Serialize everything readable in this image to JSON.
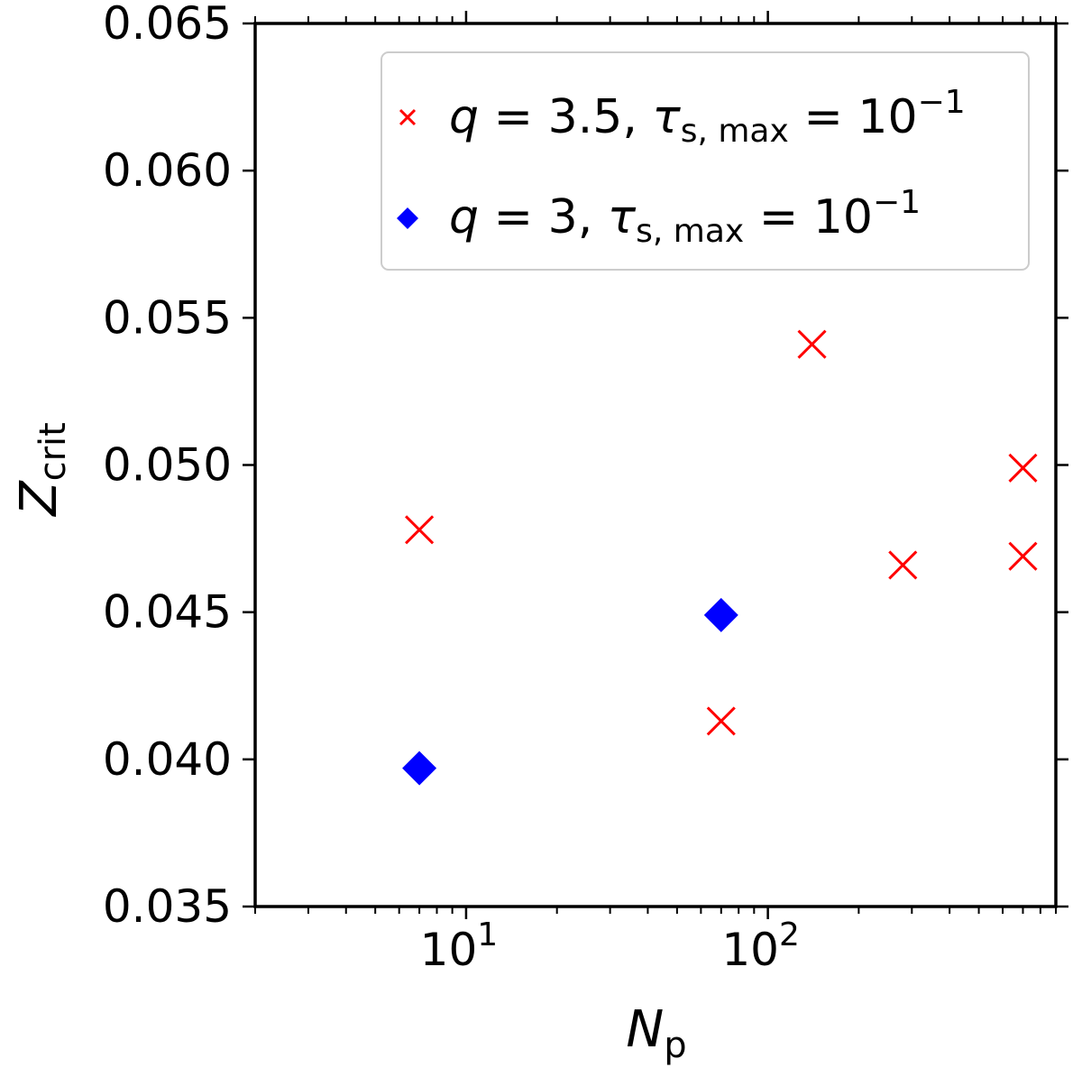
{
  "chart_data": {
    "type": "scatter",
    "xscale": "log",
    "xlim": [
      2,
      900
    ],
    "ylim": [
      0.035,
      0.065
    ],
    "xlabel": {
      "main": "N",
      "sub": "p"
    },
    "ylabel": {
      "main": "Z",
      "sub": "crit"
    },
    "yticks": [
      "0.035",
      "0.040",
      "0.045",
      "0.050",
      "0.055",
      "0.060",
      "0.065"
    ],
    "xticks": [
      {
        "base": "10",
        "exp": "1"
      },
      {
        "base": "10",
        "exp": "2"
      }
    ],
    "grid": false,
    "legend_position": "top-right",
    "series": [
      {
        "name": {
          "q": "q",
          "eq1": " = 3.5, ",
          "tau": "τ",
          "sub": "s, max",
          "eq2": " = 10",
          "sup": "−1"
        },
        "marker": "x",
        "color": "#ff0000",
        "x": [
          7,
          70,
          140,
          280,
          700,
          700
        ],
        "y": [
          0.0478,
          0.0413,
          0.0541,
          0.0466,
          0.0499,
          0.0469
        ]
      },
      {
        "name": {
          "q": "q",
          "eq1": " = 3, ",
          "tau": "τ",
          "sub": "s, max",
          "eq2": " = 10",
          "sup": "−1"
        },
        "marker": "diamond",
        "color": "#0000ff",
        "x": [
          7,
          70
        ],
        "y": [
          0.0397,
          0.0449
        ]
      }
    ]
  }
}
